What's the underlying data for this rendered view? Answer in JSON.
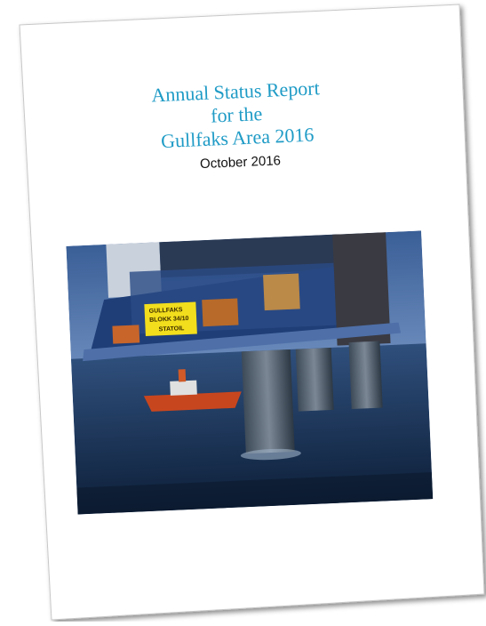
{
  "title_lines": [
    "Annual Status Report",
    "for the",
    "Gullfaks Area 2016"
  ],
  "date": "October 2016",
  "photo": {
    "sign_lines": [
      "GULLFAKS",
      "BLOKK 34/10",
      "STATOIL"
    ]
  }
}
